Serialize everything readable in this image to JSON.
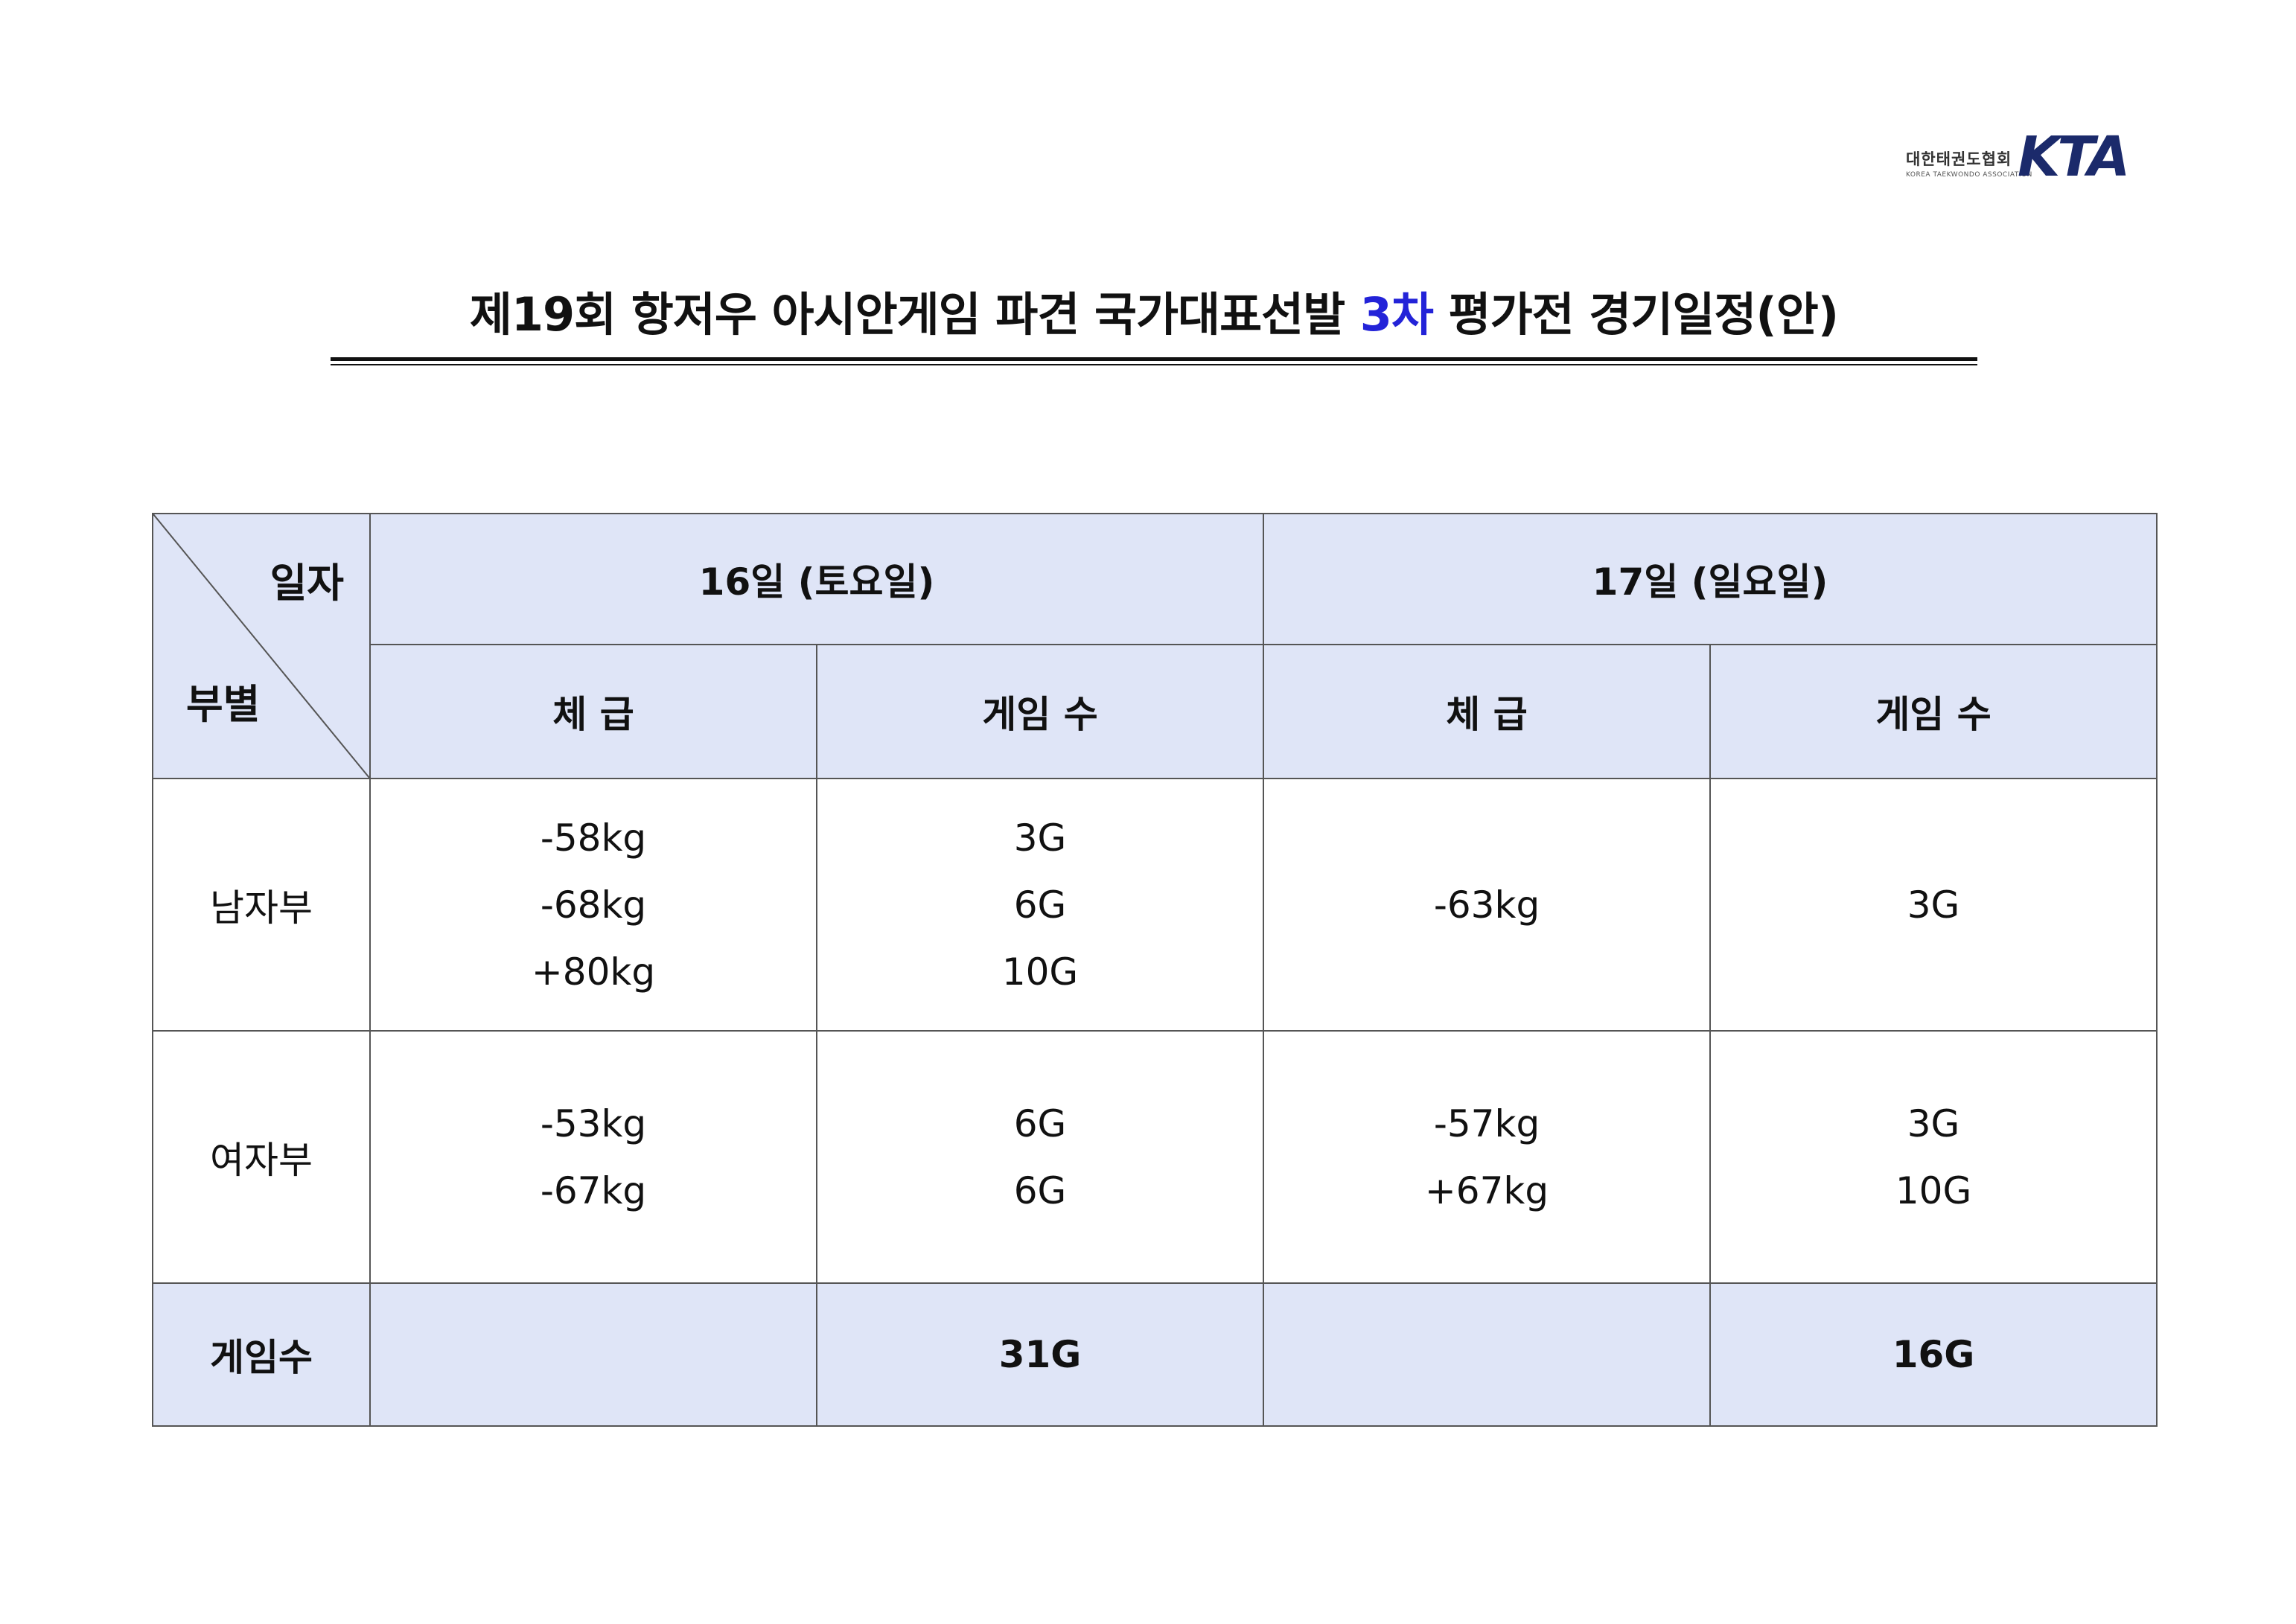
{
  "logo": {
    "korean": "대한태권도협회",
    "english": "KOREA TAEKWONDO ASSOCIATION",
    "mark": "KTA"
  },
  "title": {
    "before": "제19회 항저우 아시안게임 파견 국가대표선발 ",
    "highlight": "3차",
    "after": " 평가전 경기일정(안)",
    "highlight_color": "#2323d8"
  },
  "table": {
    "corner": {
      "top": "일자",
      "bottom": "부별"
    },
    "days": [
      "16일 (토요일)",
      "17일 (일요일)"
    ],
    "subheaders": {
      "weight": "체 급",
      "games": "게임 수"
    },
    "rows": [
      {
        "division": "남자부",
        "day1_weights": [
          "-58kg",
          "-68kg",
          "+80kg"
        ],
        "day1_games": [
          "3G",
          "6G",
          "10G"
        ],
        "day2_weights": [
          "-63kg"
        ],
        "day2_games": [
          "3G"
        ]
      },
      {
        "division": "여자부",
        "day1_weights": [
          "-53kg",
          "-67kg"
        ],
        "day1_games": [
          "6G",
          "6G"
        ],
        "day2_weights": [
          "-57kg",
          "+67kg"
        ],
        "day2_games": [
          "3G",
          "10G"
        ]
      }
    ],
    "total": {
      "label": "게임수",
      "day1": "31G",
      "day2": "16G"
    }
  },
  "colors": {
    "header_fill": "#dfe5f7",
    "logo_blue": "#1b2a6b"
  }
}
